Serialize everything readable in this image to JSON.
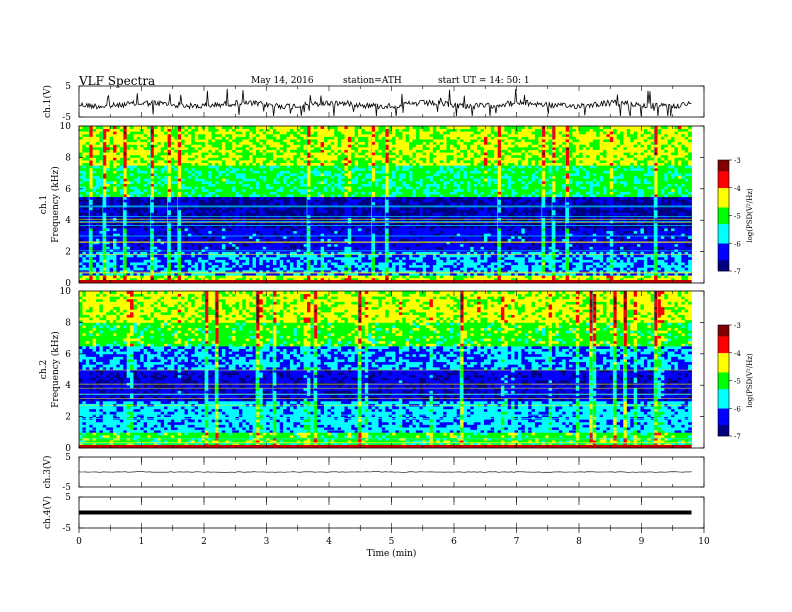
{
  "header": {
    "title": "VLF Spectra",
    "date": "May 14, 2016",
    "station": "station=ATH",
    "start": "start UT =  14: 50: 1"
  },
  "chart_data": [
    {
      "type": "line",
      "panel": "ch1-waveform",
      "ylabel": "ch.1(V)",
      "ylim": [
        -5,
        5
      ],
      "yticks": [
        "5",
        "-5"
      ],
      "x_unit": "min",
      "xlim": [
        0,
        9.8
      ],
      "series_description_value": "noisy waveform near -1 V with spikes"
    },
    {
      "type": "heatmap",
      "panel": "ch1-spectrogram",
      "ylabel": "Frequency (kHz)",
      "channel_label": "ch.1",
      "ylim": [
        0,
        10
      ],
      "yticks": [
        "0",
        "2",
        "4",
        "6",
        "8",
        "10"
      ],
      "xlim": [
        0,
        9.8
      ],
      "colorbar": {
        "label": "log(PSD(V²/Hz)",
        "range": [
          -7,
          -3
        ],
        "ticks": [
          "-3",
          "-4",
          "-5",
          "-6",
          "-7"
        ]
      },
      "bands": [
        {
          "from": 0,
          "to": 0.5,
          "level": -4.5
        },
        {
          "from": 0.5,
          "to": 2.0,
          "level": -6.0
        },
        {
          "from": 2.0,
          "to": 3.5,
          "level": -6.4
        },
        {
          "from": 3.5,
          "to": 5.5,
          "level": -6.8
        },
        {
          "from": 5.5,
          "to": 7.5,
          "level": -5.2
        },
        {
          "from": 7.5,
          "to": 10,
          "level": -4.6
        }
      ]
    },
    {
      "type": "heatmap",
      "panel": "ch2-spectrogram",
      "ylabel": "Frequency (kHz)",
      "channel_label": "ch.2",
      "ylim": [
        0,
        10
      ],
      "yticks": [
        "0",
        "2",
        "4",
        "6",
        "8",
        "10"
      ],
      "xlim": [
        0,
        9.8
      ],
      "colorbar": {
        "label": "log(PSD(V²/Hz)",
        "range": [
          -7,
          -3
        ],
        "ticks": [
          "-3",
          "-4",
          "-5",
          "-6",
          "-7"
        ]
      },
      "bands": [
        {
          "from": 0,
          "to": 1.0,
          "level": -5.0
        },
        {
          "from": 1.0,
          "to": 3.0,
          "level": -5.8
        },
        {
          "from": 3.0,
          "to": 5.0,
          "level": -6.5
        },
        {
          "from": 5.0,
          "to": 6.5,
          "level": -6.0
        },
        {
          "from": 6.5,
          "to": 8.0,
          "level": -5.0
        },
        {
          "from": 8.0,
          "to": 10,
          "level": -4.5
        }
      ]
    },
    {
      "type": "line",
      "panel": "ch3-waveform",
      "ylabel": "ch.3(V)",
      "ylim": [
        -5,
        5
      ],
      "yticks": [
        "5",
        "-5"
      ],
      "xlim": [
        0,
        9.8
      ],
      "level": 0
    },
    {
      "type": "line",
      "panel": "ch4-waveform",
      "ylabel": "ch.4(V)",
      "ylim": [
        -5,
        5
      ],
      "yticks": [
        "5",
        "-5"
      ],
      "xlim": [
        0,
        9.8
      ],
      "level": 0
    }
  ],
  "x_axis": {
    "label": "Time (min)",
    "ticks": [
      "0",
      "1",
      "2",
      "3",
      "4",
      "5",
      "6",
      "7",
      "8",
      "9",
      "10"
    ],
    "range": [
      0,
      10
    ]
  },
  "colors": {
    "jet": [
      "#000080",
      "#0000ff",
      "#00ffff",
      "#00ff00",
      "#ffff00",
      "#ff0000",
      "#800000"
    ]
  }
}
